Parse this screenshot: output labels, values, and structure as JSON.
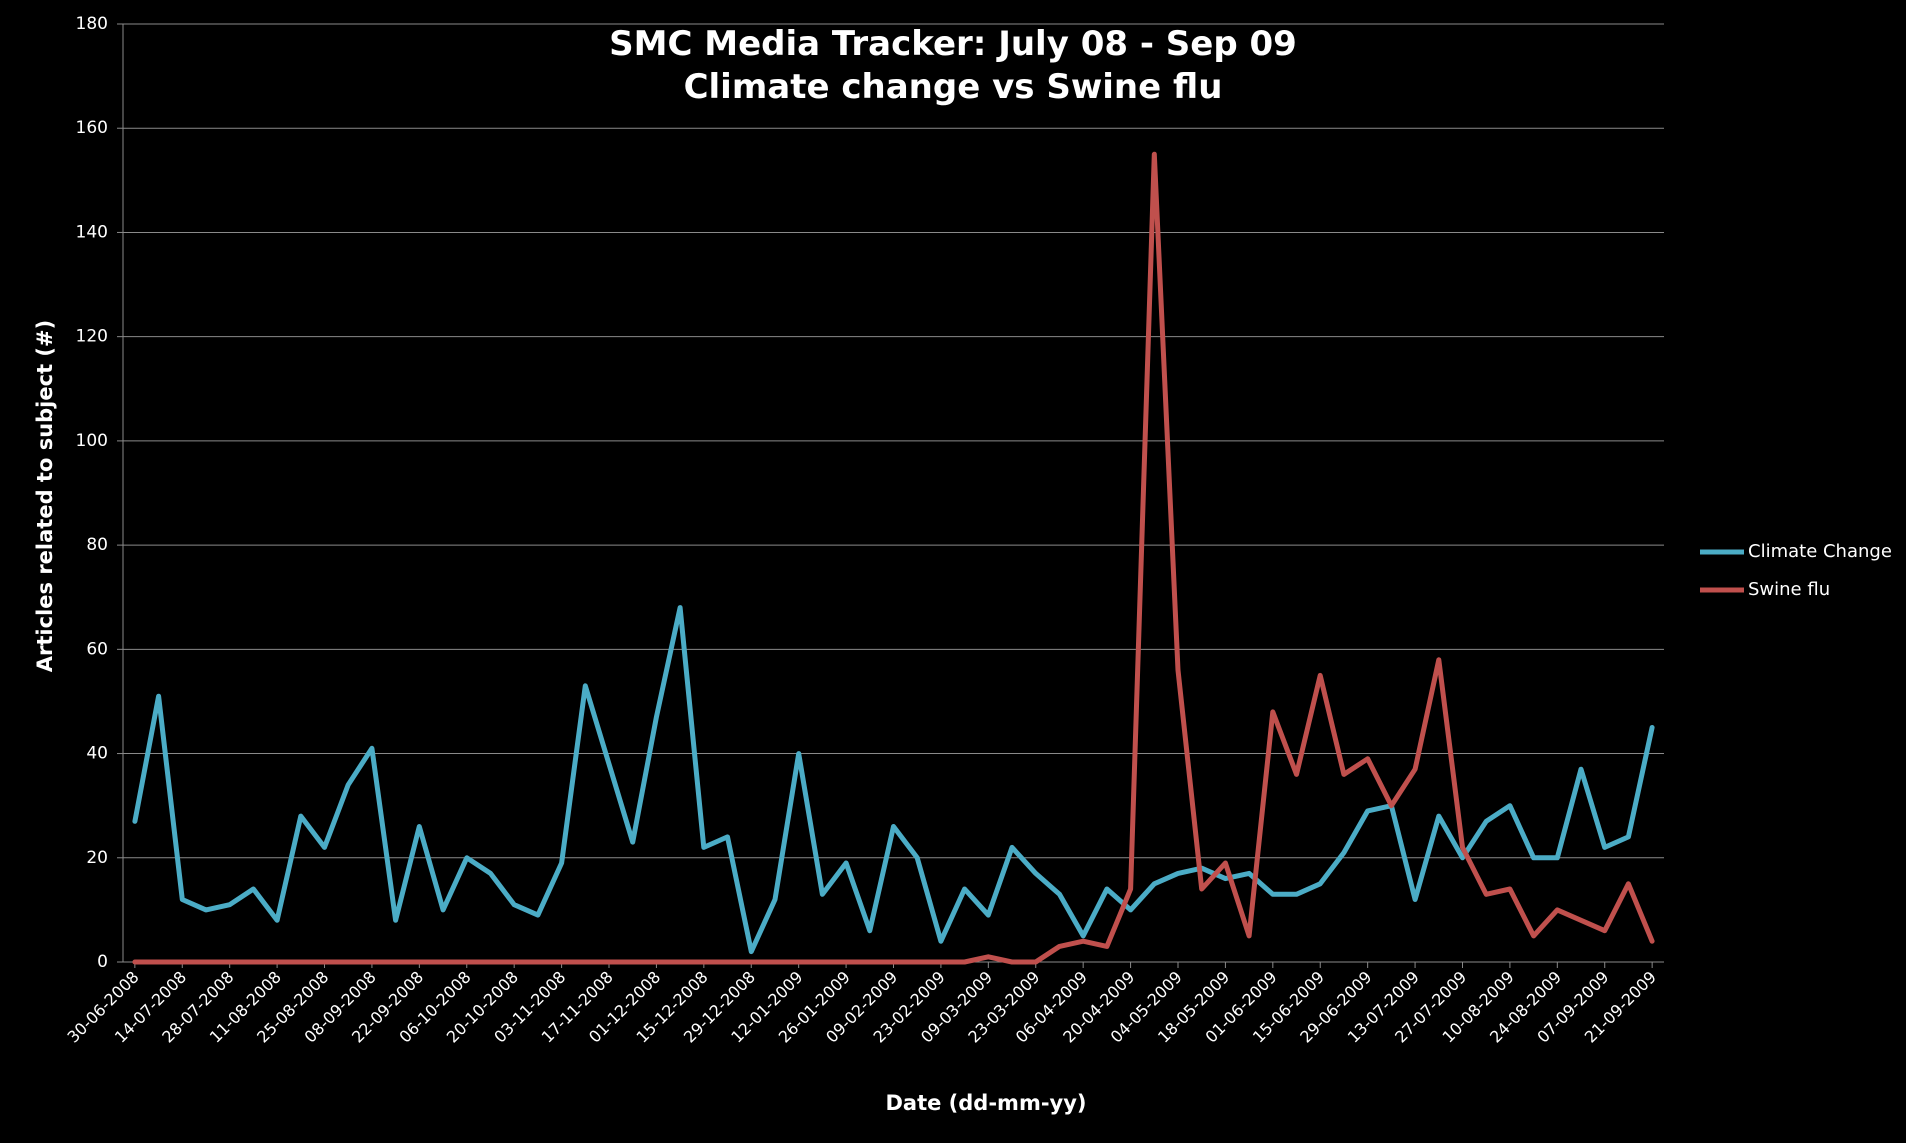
{
  "chart_data": {
    "type": "line",
    "title": [
      "SMC Media Tracker: July 08 - Sep 09",
      "Climate change vs Swine flu"
    ],
    "xlabel": "Date (dd-mm-yy)",
    "ylabel": "Articles related to subject (#)",
    "ylim": [
      0,
      180
    ],
    "yticks": [
      0,
      20,
      40,
      60,
      80,
      100,
      120,
      140,
      160,
      180
    ],
    "grid": "horizontal",
    "legend_position": "right",
    "x_tick_labels": [
      "30-06-2008",
      "14-07-2008",
      "28-07-2008",
      "11-08-2008",
      "25-08-2008",
      "08-09-2008",
      "22-09-2008",
      "06-10-2008",
      "20-10-2008",
      "03-11-2008",
      "17-11-2008",
      "01-12-2008",
      "15-12-2008",
      "29-12-2008",
      "12-01-2009",
      "26-01-2009",
      "09-02-2009",
      "23-02-2009",
      "09-03-2009",
      "23-03-2009",
      "06-04-2009",
      "20-04-2009",
      "04-05-2009",
      "18-05-2009",
      "01-06-2009",
      "15-06-2009",
      "29-06-2009",
      "13-07-2009",
      "27-07-2009",
      "10-08-2009",
      "24-08-2009",
      "07-09-2009",
      "21-09-2009"
    ],
    "series": [
      {
        "name": "Climate Change",
        "color": "#4bacc6",
        "values": [
          27,
          51,
          12,
          10,
          11,
          14,
          8,
          28,
          22,
          34,
          41,
          8,
          26,
          10,
          20,
          17,
          11,
          9,
          19,
          53,
          38,
          23,
          47,
          68,
          22,
          24,
          2,
          12,
          40,
          13,
          19,
          6,
          26,
          20,
          4,
          14,
          9,
          22,
          17,
          13,
          5,
          14,
          10,
          15,
          17,
          18,
          16,
          17,
          13,
          13,
          15,
          21,
          29,
          30,
          12,
          28,
          20,
          27,
          30,
          20,
          20,
          37,
          22,
          24,
          45
        ]
      },
      {
        "name": "Swine flu",
        "color": "#c0504d",
        "values": [
          0,
          0,
          0,
          0,
          0,
          0,
          0,
          0,
          0,
          0,
          0,
          0,
          0,
          0,
          0,
          0,
          0,
          0,
          0,
          0,
          0,
          0,
          0,
          0,
          0,
          0,
          0,
          0,
          0,
          0,
          0,
          0,
          0,
          0,
          0,
          0,
          1,
          0,
          0,
          3,
          4,
          3,
          14,
          155,
          56,
          14,
          19,
          5,
          48,
          36,
          55,
          36,
          39,
          30,
          37,
          58,
          22,
          13,
          14,
          5,
          10,
          8,
          6,
          15,
          4
        ]
      }
    ]
  }
}
